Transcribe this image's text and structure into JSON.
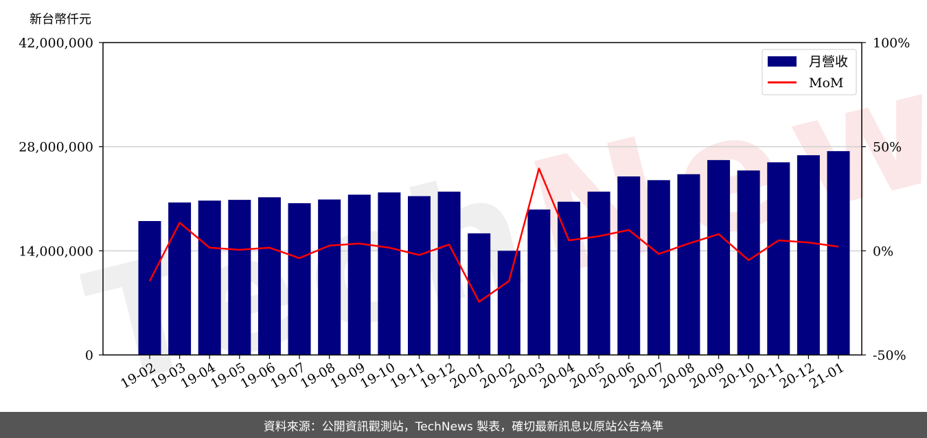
{
  "chart_data": {
    "type": "bar",
    "y_unit_label": "新台幣仟元",
    "categories": [
      "19-02",
      "19-03",
      "19-04",
      "19-05",
      "19-06",
      "19-07",
      "19-08",
      "19-09",
      "19-10",
      "19-11",
      "19-12",
      "20-01",
      "20-02",
      "20-03",
      "20-04",
      "20-05",
      "20-06",
      "20-07",
      "20-08",
      "20-09",
      "20-10",
      "20-11",
      "20-12",
      "21-01"
    ],
    "series": [
      {
        "name": "月營收",
        "type": "bar",
        "axis": "left",
        "color": "#000080",
        "values": [
          18000000,
          20500000,
          20750000,
          20850000,
          21200000,
          20400000,
          20900000,
          21550000,
          21850000,
          21350000,
          21950000,
          16350000,
          14000000,
          19550000,
          20600000,
          21950000,
          24000000,
          23500000,
          24300000,
          26200000,
          24800000,
          25900000,
          26850000,
          27400000
        ]
      },
      {
        "name": "MoM",
        "type": "line",
        "axis": "right",
        "color": "#ff0000",
        "values": [
          -14.5,
          13.5,
          1.5,
          0.5,
          1.5,
          -3.5,
          2.5,
          3.5,
          1.5,
          -2,
          3,
          -24.5,
          -14.5,
          39.5,
          5,
          7,
          10,
          -1.5,
          3.5,
          8,
          -4.5,
          5,
          4,
          2
        ]
      }
    ],
    "y_left": {
      "ylim": [
        0,
        42000000
      ],
      "ticks": [
        0,
        14000000,
        28000000,
        42000000
      ],
      "tick_labels": [
        "0",
        "14,000,000",
        "28,000,000",
        "42,000,000"
      ]
    },
    "y_right": {
      "ylim": [
        -50,
        100
      ],
      "ticks": [
        -50,
        0,
        50,
        100
      ],
      "tick_labels": [
        "-50%",
        "0%",
        "50%",
        "100%"
      ]
    },
    "grid": "horizontal",
    "legend_placement": "top-right"
  },
  "watermark": {
    "part1": "Tech",
    "part2": "News"
  },
  "footer": {
    "text": "資料來源：公開資訊觀測站，TechNews 製表，確切最新訊息以原站公告為準"
  },
  "colors": {
    "bar": "#000080",
    "line": "#ff0000",
    "footer_bg": "#555555"
  }
}
